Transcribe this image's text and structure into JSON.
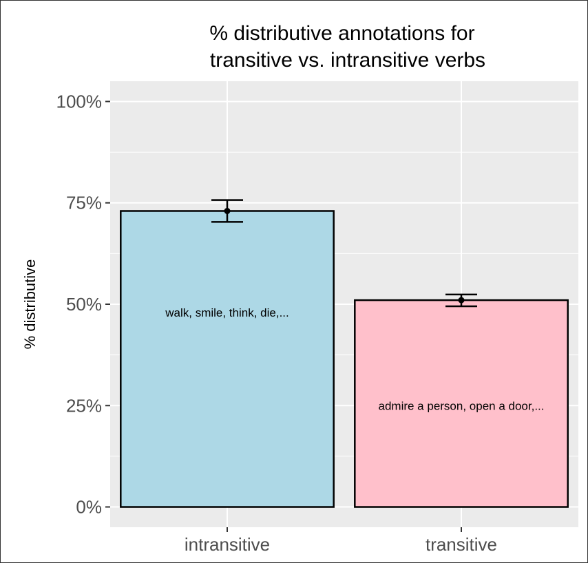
{
  "chart_data": {
    "type": "bar",
    "title_lines": [
      "% distributive annotations for",
      "transitive vs. intransitive verbs"
    ],
    "xlabel": "",
    "ylabel": "% distributive",
    "categories": [
      "intransitive",
      "transitive"
    ],
    "values": [
      73,
      51
    ],
    "error_low": [
      70.3,
      49.5
    ],
    "error_high": [
      75.7,
      52.4
    ],
    "bar_colors": [
      "#add8e6",
      "#ffc0cb"
    ],
    "bar_annotations": [
      "walk, smile, think, die,...",
      "admire a person, open a door,..."
    ],
    "ylim": [
      -5,
      105
    ],
    "yticks": [
      0,
      25,
      50,
      75,
      100
    ],
    "ytick_labels": [
      "0%",
      "25%",
      "50%",
      "75%",
      "100%"
    ],
    "grid": true,
    "panel_background": "#ebebeb",
    "grid_color": "#ffffff"
  }
}
